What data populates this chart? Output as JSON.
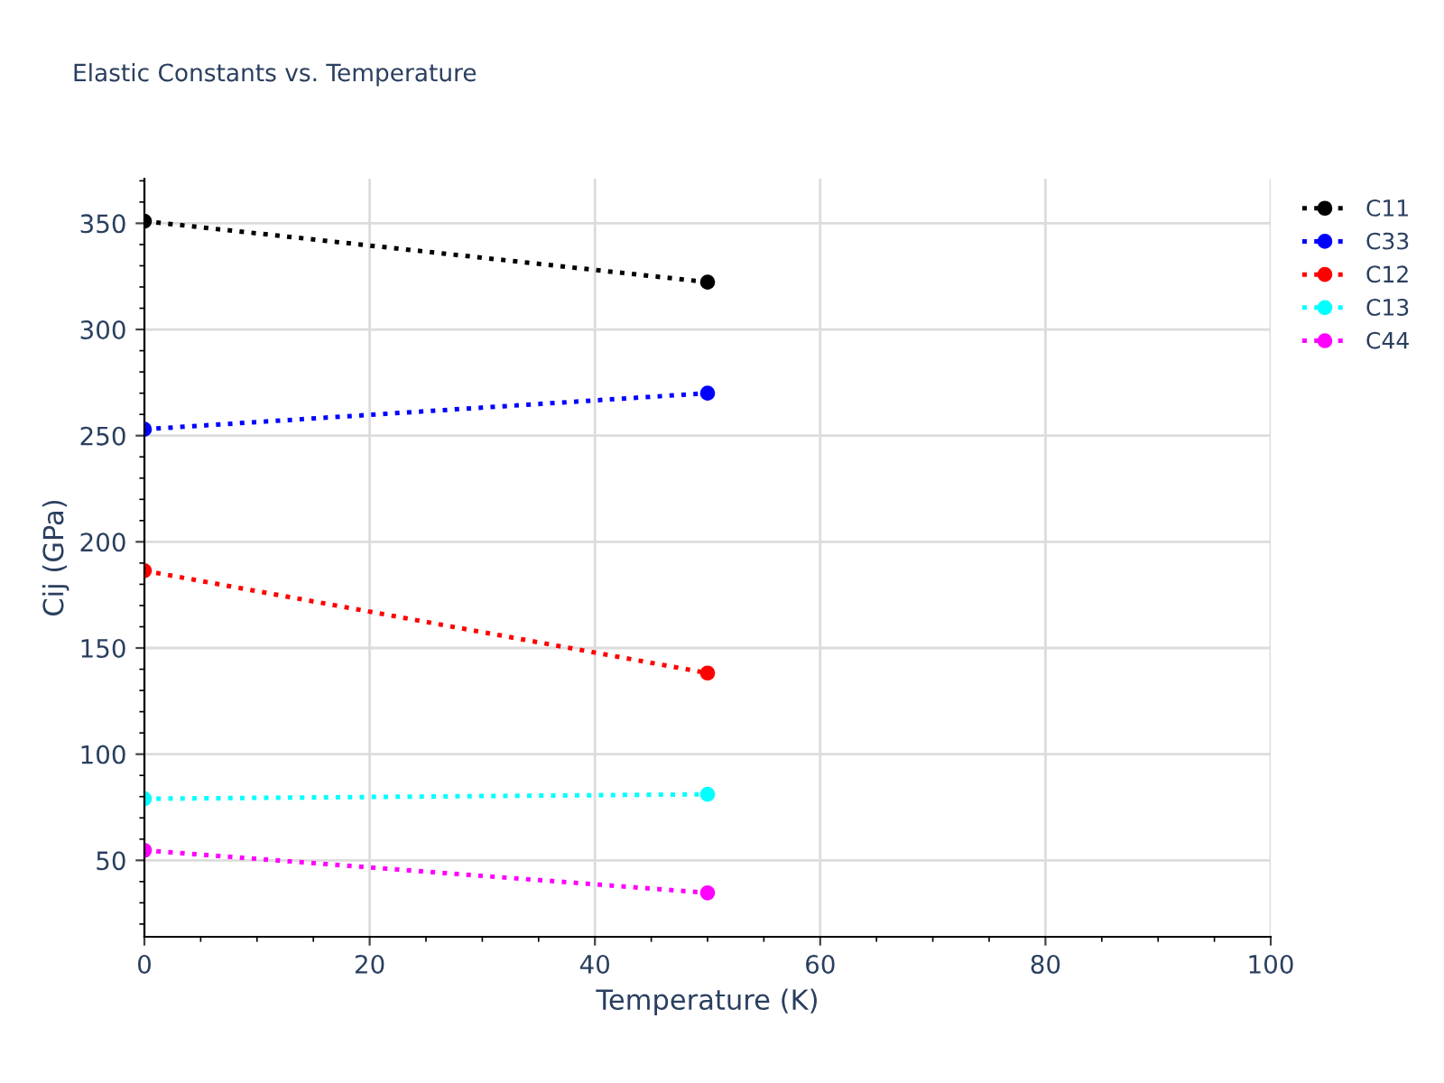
{
  "chart_data": {
    "type": "line",
    "title": "Elastic Constants vs. Temperature",
    "xlabel": "Temperature (K)",
    "ylabel": "Cij (GPa)",
    "x": [
      0,
      50
    ],
    "series": [
      {
        "name": "C11",
        "color": "#000000",
        "values": [
          351,
          322.3
        ]
      },
      {
        "name": "C33",
        "color": "#0000ff",
        "values": [
          253,
          270
        ]
      },
      {
        "name": "C12",
        "color": "#ff0000",
        "values": [
          186.4,
          138.2
        ]
      },
      {
        "name": "C13",
        "color": "#00ffff",
        "values": [
          79,
          81.1
        ]
      },
      {
        "name": "C44",
        "color": "#ff00ff",
        "values": [
          54.7,
          34.7
        ]
      }
    ],
    "xlim": [
      0,
      100
    ],
    "xticks": [
      0,
      20,
      40,
      60,
      80,
      100
    ],
    "ylim": [
      14,
      371
    ],
    "yticks": [
      50,
      100,
      150,
      200,
      250,
      300,
      350
    ],
    "grid": true,
    "legend": "top right",
    "marker": "circle",
    "line_style": "dotted"
  }
}
